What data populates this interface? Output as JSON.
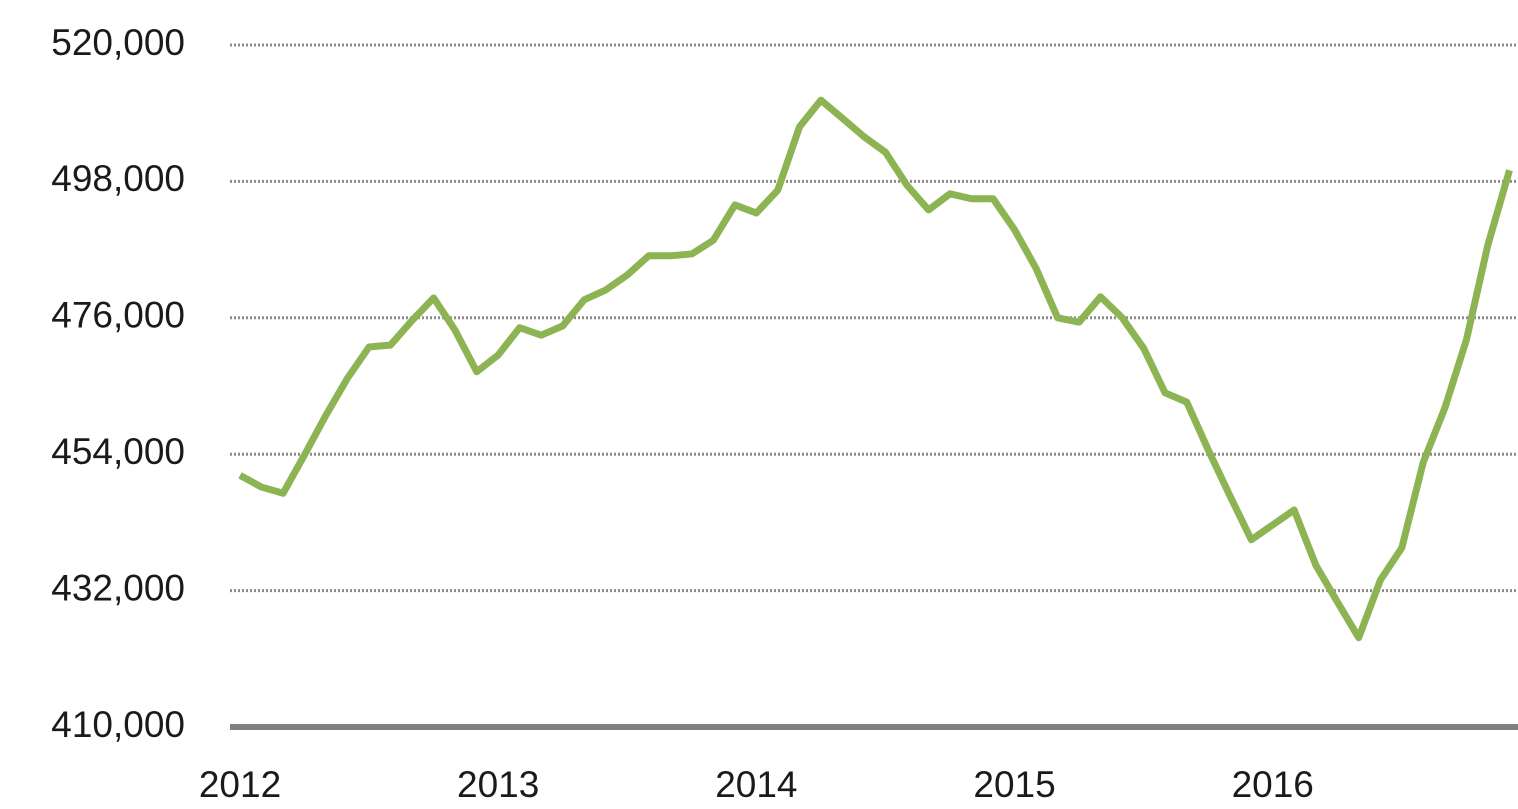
{
  "chart_data": {
    "type": "line",
    "x": [
      2012,
      2012.083,
      2012.167,
      2012.25,
      2012.333,
      2012.417,
      2012.5,
      2012.583,
      2012.667,
      2012.75,
      2012.833,
      2012.917,
      2013,
      2013.083,
      2013.167,
      2013.25,
      2013.333,
      2013.417,
      2013.5,
      2013.583,
      2013.667,
      2013.75,
      2013.833,
      2013.917,
      2014,
      2014.083,
      2014.167,
      2014.25,
      2014.333,
      2014.417,
      2014.5,
      2014.583,
      2014.667,
      2014.75,
      2014.833,
      2014.917,
      2015,
      2015.083,
      2015.167,
      2015.25,
      2015.333,
      2015.417,
      2015.5,
      2015.583,
      2015.667,
      2015.75,
      2015.833,
      2015.917,
      2016,
      2016.083,
      2016.167,
      2016.25,
      2016.333,
      2016.417,
      2016.5,
      2016.583,
      2016.667,
      2016.75,
      2016.833,
      2016.917
    ],
    "series": [
      {
        "color": "#8db453",
        "values": [
          450600,
          448700,
          447700,
          453900,
          460300,
          466300,
          471300,
          471600,
          475600,
          479200,
          474000,
          467300,
          470000,
          474400,
          473200,
          474700,
          478900,
          480500,
          482900,
          486000,
          486000,
          486300,
          488500,
          494200,
          492900,
          496600,
          506800,
          511100,
          508200,
          505200,
          502700,
          497400,
          493400,
          496000,
          495200,
          495200,
          490200,
          484000,
          476000,
          475300,
          479400,
          476000,
          471100,
          463900,
          462400,
          454700,
          447400,
          440200,
          442600,
          445000,
          436100,
          430200,
          424400,
          433700,
          438900,
          452700,
          461500,
          472400,
          487700,
          499800
        ]
      }
    ],
    "xlim": [
      2012,
      2016.95
    ],
    "xticks": [
      2012,
      2013,
      2014,
      2015,
      2016
    ],
    "ylim": [
      410000,
      520000
    ],
    "yticks": [
      {
        "value": 410000,
        "label": "410,000"
      },
      {
        "value": 432000,
        "label": "432,000"
      },
      {
        "value": 454000,
        "label": "454,000"
      },
      {
        "value": 476000,
        "label": "476,000"
      },
      {
        "value": 498000,
        "label": "498,000"
      },
      {
        "value": 520000,
        "label": "520,000"
      }
    ],
    "grid": true
  }
}
